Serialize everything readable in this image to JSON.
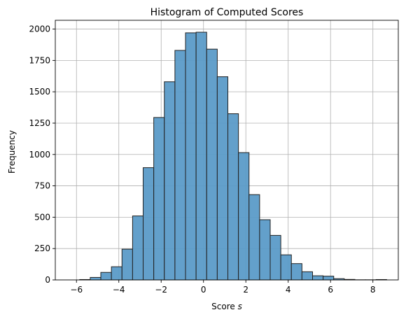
{
  "chart_data": {
    "type": "bar",
    "title": "Histogram of Computed Scores",
    "xlabel": "Score ",
    "xlabel_var": "s",
    "ylabel": "Frequency",
    "xlim": [
      -7.0,
      9.2
    ],
    "ylim": [
      0,
      2070
    ],
    "xticks": [
      -6,
      -4,
      -2,
      0,
      2,
      4,
      6,
      8
    ],
    "xtick_labels": [
      "−6",
      "−4",
      "−2",
      "0",
      "2",
      "4",
      "6",
      "8"
    ],
    "yticks": [
      0,
      250,
      500,
      750,
      1000,
      1250,
      1500,
      1750,
      2000
    ],
    "ytick_labels": [
      "0",
      "250",
      "500",
      "750",
      "1000",
      "1250",
      "1500",
      "1750",
      "2000"
    ],
    "grid": true,
    "bar_color": "#5b9bc8",
    "bar_edge_color": "#222222",
    "bins": [
      {
        "x0": -5.85,
        "x1": -5.35,
        "count": 3
      },
      {
        "x0": -5.35,
        "x1": -4.85,
        "count": 20
      },
      {
        "x0": -4.85,
        "x1": -4.35,
        "count": 60
      },
      {
        "x0": -4.35,
        "x1": -3.85,
        "count": 105
      },
      {
        "x0": -3.85,
        "x1": -3.35,
        "count": 245
      },
      {
        "x0": -3.35,
        "x1": -2.85,
        "count": 510
      },
      {
        "x0": -2.85,
        "x1": -2.35,
        "count": 895
      },
      {
        "x0": -2.35,
        "x1": -1.85,
        "count": 1295
      },
      {
        "x0": -1.85,
        "x1": -1.35,
        "count": 1580
      },
      {
        "x0": -1.35,
        "x1": -0.85,
        "count": 1830
      },
      {
        "x0": -0.85,
        "x1": -0.35,
        "count": 1970
      },
      {
        "x0": -0.35,
        "x1": 0.15,
        "count": 1975
      },
      {
        "x0": 0.15,
        "x1": 0.65,
        "count": 1840
      },
      {
        "x0": 0.65,
        "x1": 1.15,
        "count": 1620
      },
      {
        "x0": 1.15,
        "x1": 1.65,
        "count": 1325
      },
      {
        "x0": 1.65,
        "x1": 2.15,
        "count": 1015
      },
      {
        "x0": 2.15,
        "x1": 2.65,
        "count": 680
      },
      {
        "x0": 2.65,
        "x1": 3.15,
        "count": 480
      },
      {
        "x0": 3.15,
        "x1": 3.65,
        "count": 355
      },
      {
        "x0": 3.65,
        "x1": 4.15,
        "count": 200
      },
      {
        "x0": 4.15,
        "x1": 4.65,
        "count": 130
      },
      {
        "x0": 4.65,
        "x1": 5.15,
        "count": 65
      },
      {
        "x0": 5.15,
        "x1": 5.65,
        "count": 33
      },
      {
        "x0": 5.65,
        "x1": 6.15,
        "count": 30
      },
      {
        "x0": 6.15,
        "x1": 6.65,
        "count": 10
      },
      {
        "x0": 6.65,
        "x1": 7.15,
        "count": 4
      },
      {
        "x0": 7.15,
        "x1": 7.65,
        "count": 1
      },
      {
        "x0": 7.65,
        "x1": 8.15,
        "count": 1
      },
      {
        "x0": 8.15,
        "x1": 8.65,
        "count": 3
      }
    ]
  }
}
